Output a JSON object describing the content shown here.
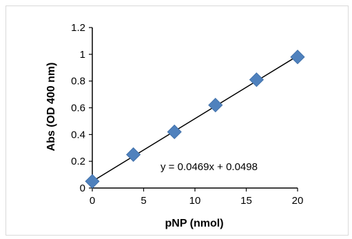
{
  "chart_data": {
    "type": "scatter",
    "title": "",
    "xlabel": "pNP (nmol)",
    "ylabel": "Abs (OD 400 nm)",
    "xlim": [
      0,
      20
    ],
    "ylim": [
      0,
      1.2
    ],
    "x_ticks": [
      0,
      5,
      10,
      15,
      20
    ],
    "y_ticks": [
      0,
      0.2,
      0.4,
      0.6,
      0.8,
      1,
      1.2
    ],
    "x_tick_labels": [
      "0",
      "5",
      "10",
      "15",
      "20"
    ],
    "y_tick_labels": [
      "0",
      "0.2",
      "0.4",
      "0.6",
      "0.8",
      "1",
      "1.2"
    ],
    "grid": false,
    "legend": "none",
    "marker": "diamond",
    "marker_color": "#4f81bd",
    "series": [
      {
        "x": [
          0,
          4,
          8,
          12,
          16,
          20
        ],
        "y": [
          0.05,
          0.25,
          0.42,
          0.62,
          0.81,
          0.98
        ]
      }
    ],
    "trendline": {
      "type": "linear",
      "slope": 0.0469,
      "intercept": 0.0498,
      "color": "#000000",
      "equation": "y = 0.0469x + 0.0498"
    }
  }
}
